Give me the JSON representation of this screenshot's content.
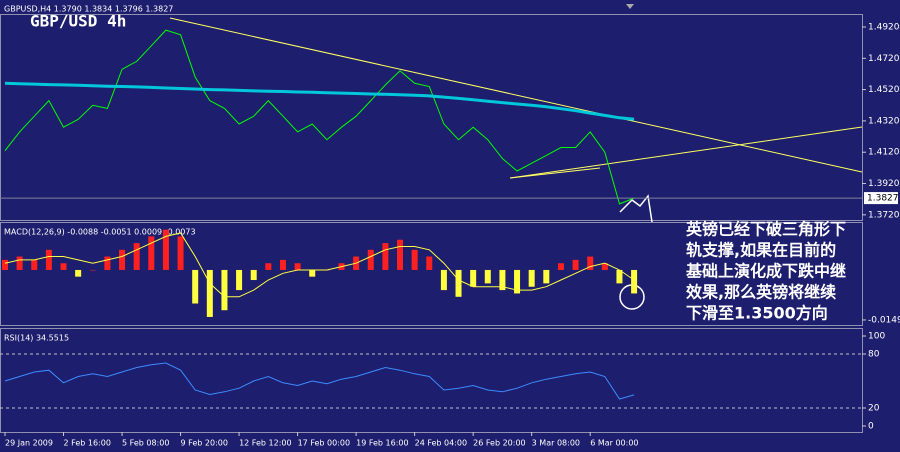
{
  "chart_data": [
    {
      "type": "line",
      "title": "GBP/USD 4h",
      "subtitle": "GBPUSD,H4 1.3790 1.3834 1.3796 1.3827",
      "annotations": [
        "英镑已经下破三角形下",
        "轨支撑,如果在目前的",
        "基础上演化成下跌中继",
        "效果,那么英镑将继续",
        "下滑至1.3500方向"
      ],
      "categories": [
        "29 Jan 2009",
        null,
        null,
        null,
        "2 Feb 16:00",
        null,
        null,
        null,
        "5 Feb 08:00",
        null,
        null,
        null,
        "9 Feb 20:00",
        null,
        null,
        null,
        "12 Feb 12:00",
        null,
        null,
        null,
        "17 Feb 00:00",
        null,
        null,
        null,
        "19 Feb 16:00",
        null,
        null,
        null,
        "24 Feb 04:00",
        null,
        null,
        null,
        "26 Feb 20:00",
        null,
        null,
        null,
        "3 Mar 08:00",
        null,
        null,
        null,
        "6 Mar 00:00",
        null,
        null,
        null
      ],
      "series": [
        {
          "color": "#00ff00",
          "values": [
            1.413,
            1.425,
            1.435,
            1.445,
            1.428,
            1.433,
            1.442,
            1.44,
            1.465,
            1.47,
            1.48,
            1.49,
            1.487,
            1.46,
            1.445,
            1.44,
            1.43,
            1.435,
            1.445,
            1.435,
            1.425,
            1.43,
            1.42,
            1.428,
            1.435,
            1.445,
            1.455,
            1.464,
            1.456,
            1.454,
            1.43,
            1.42,
            1.428,
            1.42,
            1.408,
            1.4,
            1.405,
            1.41,
            1.415,
            1.415,
            1.425,
            1.412,
            1.379,
            1.3827
          ]
        },
        {
          "color": "#00c8dc",
          "values": [
            1.456,
            1.4558,
            1.4555,
            1.4552,
            1.455,
            1.4548,
            1.4545,
            1.4542,
            1.454,
            1.4537,
            1.4534,
            1.453,
            1.4527,
            1.4524,
            1.452,
            1.4518,
            1.4515,
            1.4512,
            1.451,
            1.4508,
            1.4505,
            1.4503,
            1.45,
            1.4498,
            1.4495,
            1.4492,
            1.449,
            1.4487,
            1.4484,
            1.448,
            1.4472,
            1.4464,
            1.4455,
            1.4446,
            1.4437,
            1.4428,
            1.442,
            1.441,
            1.4398,
            1.4385,
            1.437,
            1.4355,
            1.434,
            1.433
          ]
        }
      ],
      "last_price": 1.3827,
      "ylim": [
        1.3687,
        1.5003
      ],
      "yticks": [
        {
          "value": 1.492,
          "label": "1.4920"
        },
        {
          "value": 1.472,
          "label": "1.4720"
        },
        {
          "value": 1.452,
          "label": "1.4520"
        },
        {
          "value": 1.432,
          "label": "1.4320"
        },
        {
          "value": 1.412,
          "label": "1.4120"
        },
        {
          "value": 1.392,
          "label": "1.3920"
        },
        {
          "value": 1.372,
          "label": "1.3720"
        }
      ]
    },
    {
      "type": "bar",
      "title": "MACD(12,26,9) -0.0088 -0.0051 0.0009 -0.0073",
      "color": "#ff2020",
      "negative_color": "#ffff40",
      "values": [
        0.003,
        0.004,
        0.003,
        0.006,
        0.002,
        -0.002,
        0,
        0.004,
        0.006,
        0.008,
        0.01,
        0.012,
        0.01,
        -0.01,
        -0.014,
        -0.012,
        -0.006,
        -0.003,
        0.002,
        0.003,
        0.002,
        -0.002,
        0,
        0.002,
        0.004,
        0.006,
        0.008,
        0.009,
        0.006,
        0.004,
        -0.006,
        -0.008,
        -0.005,
        -0.004,
        -0.006,
        -0.007,
        -0.005,
        -0.004,
        0.002,
        0.003,
        0.004,
        0.002,
        -0.004,
        -0.007
      ],
      "series": [
        {
          "color": "#ffff40",
          "values": [
            0.002,
            0.003,
            0.003,
            0.004,
            0.004,
            0.003,
            0.002,
            0.003,
            0.004,
            0.006,
            0.008,
            0.01,
            0.011,
            0.004,
            -0.004,
            -0.008,
            -0.008,
            -0.006,
            -0.003,
            -0.001,
            0,
            0,
            0,
            0.001,
            0.002,
            0.004,
            0.006,
            0.007,
            0.007,
            0.006,
            0.002,
            -0.003,
            -0.005,
            -0.005,
            -0.005,
            -0.006,
            -0.006,
            -0.005,
            -0.003,
            -0.001,
            0.001,
            0.002,
            0,
            -0.003
          ]
        }
      ],
      "ylim": [
        -0.0164,
        0.0125
      ],
      "yticks": [
        -0.0149
      ]
    },
    {
      "type": "line",
      "title": "RSI(14) 34.5515",
      "series": [
        {
          "color": "#3c8cff",
          "values": [
            50,
            55,
            60,
            62,
            48,
            55,
            58,
            55,
            60,
            65,
            68,
            70,
            62,
            40,
            35,
            38,
            42,
            50,
            55,
            48,
            45,
            50,
            47,
            52,
            55,
            60,
            65,
            62,
            58,
            55,
            40,
            42,
            45,
            40,
            38,
            42,
            48,
            52,
            55,
            58,
            60,
            55,
            30,
            34.5515
          ]
        }
      ],
      "ylim": [
        0,
        100
      ],
      "yticks": [
        100,
        80,
        20,
        0
      ],
      "levels": [
        80,
        20
      ]
    }
  ]
}
